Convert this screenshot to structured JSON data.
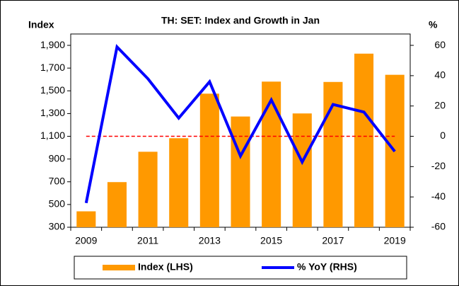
{
  "chart_data": {
    "type": "bar_line",
    "title": "TH: SET: Index and Growth in Jan",
    "y_label": "Index",
    "y2_label": "%",
    "x": [
      2009,
      2010,
      2011,
      2012,
      2013,
      2014,
      2015,
      2016,
      2017,
      2018,
      2019
    ],
    "xlim": [
      2008.5,
      2019.5
    ],
    "xticks": [
      2009,
      2011,
      2013,
      2015,
      2017,
      2019
    ],
    "ylim": [
      300,
      2000
    ],
    "yticks": [
      300,
      500,
      700,
      900,
      {
        "value": 1100,
        "label": "1,100"
      },
      {
        "value": 1300,
        "label": "1,300"
      },
      {
        "value": 1500,
        "label": "1,500"
      },
      {
        "value": 1700,
        "label": "1,700"
      },
      {
        "value": 1900,
        "label": "1,900"
      }
    ],
    "y2lim": [
      -60,
      67.5
    ],
    "y2ticks": [
      -60,
      -40,
      -20,
      0,
      20,
      40,
      60
    ],
    "series": [
      {
        "name": "Index (LHS)",
        "type": "bar",
        "color": "#ff9900",
        "values": [
          440,
          697,
          964,
          1083,
          1475,
          1274,
          1581,
          1301,
          1578,
          1827,
          1641
        ]
      },
      {
        "name": "% YoY (RHS)",
        "type": "line",
        "axis": "y2",
        "color": "#0000ff",
        "values": [
          -44,
          59,
          38,
          12,
          36,
          -13,
          24,
          -17,
          21,
          16,
          -10
        ]
      }
    ],
    "reference_line": {
      "axis": "y2",
      "value": 0,
      "color": "#ff0000"
    },
    "legend": "bottom"
  }
}
